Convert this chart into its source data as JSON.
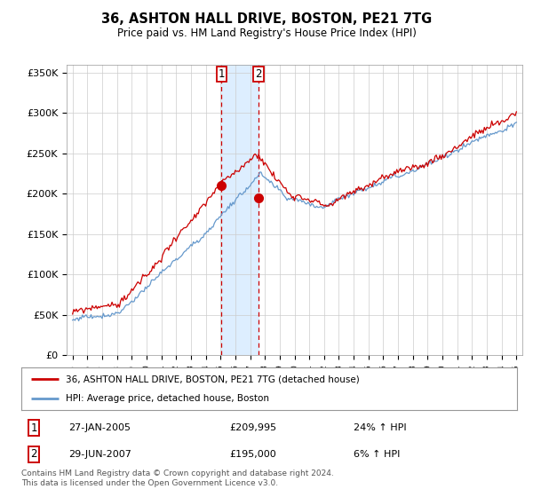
{
  "title": "36, ASHTON HALL DRIVE, BOSTON, PE21 7TG",
  "subtitle": "Price paid vs. HM Land Registry's House Price Index (HPI)",
  "ylim": [
    0,
    360000
  ],
  "yticks": [
    0,
    50000,
    100000,
    150000,
    200000,
    250000,
    300000,
    350000
  ],
  "ytick_labels": [
    "£0",
    "£50K",
    "£100K",
    "£150K",
    "£200K",
    "£250K",
    "£300K",
    "£350K"
  ],
  "sale1_date": "27-JAN-2005",
  "sale1_price": 209995,
  "sale1_hpi": "24% ↑ HPI",
  "sale2_date": "29-JUN-2007",
  "sale2_price": 195000,
  "sale2_hpi": "6% ↑ HPI",
  "red_line_color": "#cc0000",
  "blue_line_color": "#6699cc",
  "shaded_color": "#ddeeff",
  "legend_house_label": "36, ASHTON HALL DRIVE, BOSTON, PE21 7TG (detached house)",
  "legend_hpi_label": "HPI: Average price, detached house, Boston",
  "footer": "Contains HM Land Registry data © Crown copyright and database right 2024.\nThis data is licensed under the Open Government Licence v3.0.",
  "background_color": "#ffffff",
  "grid_color": "#cccccc"
}
